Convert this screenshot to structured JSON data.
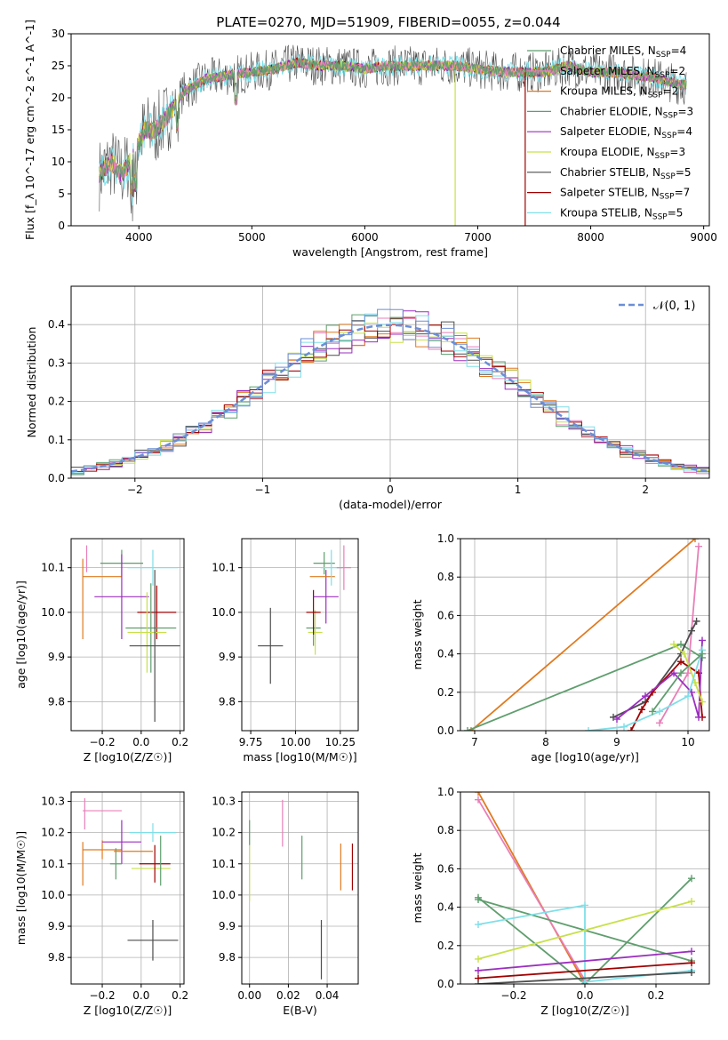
{
  "figure": {
    "title": "PLATE=0270, MJD=51909, FIBERID=0055, z=0.044"
  },
  "colors": {
    "palette": [
      "#5f9e6e",
      "#b556d4",
      "#d4d400",
      "#4d4d4d",
      "#a00000",
      "#7fdfe8",
      "#e07a1f",
      "#6b8ed6",
      "#e87fb8"
    ],
    "series_colors": {
      "Chabrier MILES": "#5f9e6e",
      "Salpeter MILES": "#e87fb8",
      "Kroupa MILES": "#e07a1f",
      "Chabrier ELODIE": "#5f9e6e",
      "Salpeter ELODIE": "#9b2fbf",
      "Kroupa ELODIE": "#c8e04a",
      "Chabrier STELIB": "#4d4d4d",
      "Salpeter STELIB": "#a00000",
      "Kroupa STELIB": "#7fdfe8"
    },
    "normal": "#6b8ed6",
    "grid": "#b0b0b0"
  },
  "chart_data": [
    {
      "id": "spectrum",
      "type": "line",
      "xlabel": "wavelength [Angstrom, rest frame]",
      "ylabel": "Flux [f_λ 10^-17 erg cm^-2 s^-1 A^-1]",
      "xlim": [
        3400,
        9050
      ],
      "ylim": [
        0,
        30
      ],
      "xticks": [
        4000,
        5000,
        6000,
        7000,
        8000,
        9000
      ],
      "yticks": [
        0,
        5,
        10,
        15,
        20,
        25,
        30
      ],
      "grid": false,
      "legend_position": "top-right",
      "legend": [
        {
          "name": "Chabrier MILES",
          "n": "4"
        },
        {
          "name": "Salpeter MILES",
          "n": "2"
        },
        {
          "name": "Kroupa MILES",
          "n": "2"
        },
        {
          "name": "Chabrier ELODIE",
          "n": "3"
        },
        {
          "name": "Salpeter ELODIE",
          "n": "4"
        },
        {
          "name": "Kroupa ELODIE",
          "n": "3"
        },
        {
          "name": "Chabrier STELIB",
          "n": "5"
        },
        {
          "name": "Salpeter STELIB",
          "n": "7"
        },
        {
          "name": "Kroupa STELIB",
          "n": "5"
        }
      ],
      "continuum": [
        [
          3650,
          8
        ],
        [
          3750,
          10
        ],
        [
          3850,
          8
        ],
        [
          3950,
          11
        ],
        [
          4050,
          15
        ],
        [
          4150,
          15
        ],
        [
          4250,
          17
        ],
        [
          4400,
          21
        ],
        [
          4600,
          23
        ],
        [
          4800,
          23.5
        ],
        [
          5000,
          24
        ],
        [
          5200,
          24.5
        ],
        [
          5400,
          25.5
        ],
        [
          5600,
          25
        ],
        [
          5800,
          25
        ],
        [
          6000,
          24.5
        ],
        [
          6200,
          25
        ],
        [
          6400,
          25
        ],
        [
          6600,
          25
        ],
        [
          6800,
          25
        ],
        [
          7000,
          24.5
        ],
        [
          7200,
          24
        ],
        [
          7400,
          24
        ],
        [
          7600,
          24
        ],
        [
          7800,
          25
        ],
        [
          8000,
          24
        ],
        [
          8200,
          24
        ],
        [
          8400,
          23.5
        ],
        [
          8600,
          23
        ],
        [
          8800,
          22
        ]
      ],
      "dropouts": [
        {
          "x": 6800,
          "series": "Kroupa ELODIE"
        },
        {
          "x": 7420,
          "series": "Salpeter STELIB"
        }
      ]
    },
    {
      "id": "residuals",
      "type": "histogram",
      "xlabel": "(data-model)/error",
      "ylabel": "Normed distribution",
      "xlim": [
        -2.5,
        2.5
      ],
      "ylim": [
        0,
        0.5
      ],
      "xticks": [
        -2,
        -1,
        0,
        1,
        2
      ],
      "yticks": [
        0.0,
        0.1,
        0.2,
        0.3,
        0.4
      ],
      "grid": true,
      "legend_position": "top-right",
      "legend": "𝒩(0, 1)",
      "bin_width": 0.1
    },
    {
      "id": "age_vs_Z",
      "type": "errorbar",
      "xlabel": "Z [log10(Z/Z☉)]",
      "ylabel": "age [log10(age/yr)]",
      "xlim": [
        -0.36,
        0.22
      ],
      "ylim": [
        9.735,
        10.165
      ],
      "xticks": [
        -0.2,
        0.0,
        0.2
      ],
      "yticks": [
        9.8,
        9.9,
        10.0,
        10.1
      ],
      "grid": true,
      "points": [
        {
          "x": -0.3,
          "xerr": 0.0,
          "y": 10.03,
          "yerr": 0.09,
          "series": "Kroupa MILES"
        },
        {
          "x": -0.2,
          "xerr": 0.1,
          "y": 10.08,
          "yerr": 0.0,
          "series": "Kroupa MILES"
        },
        {
          "x": -0.28,
          "xerr": 0.0,
          "y": 10.12,
          "yerr": 0.03,
          "series": "Salpeter MILES"
        },
        {
          "x": -0.1,
          "xerr": 0.11,
          "y": 10.11,
          "yerr": 0.03,
          "series": "Chabrier ELODIE"
        },
        {
          "x": -0.1,
          "xerr": 0.14,
          "y": 10.035,
          "yerr": 0.095,
          "series": "Salpeter ELODIE"
        },
        {
          "x": 0.06,
          "xerr": 0.13,
          "y": 10.1,
          "yerr": 0.04,
          "series": "Kroupa STELIB"
        },
        {
          "x": 0.08,
          "xerr": 0.1,
          "y": 10.0,
          "yerr": 0.06,
          "series": "Salpeter STELIB"
        },
        {
          "x": 0.05,
          "xerr": 0.13,
          "y": 9.965,
          "yerr": 0.1,
          "series": "Chabrier MILES"
        },
        {
          "x": 0.03,
          "xerr": 0.1,
          "y": 9.955,
          "yerr": 0.09,
          "series": "Kroupa ELODIE"
        },
        {
          "x": 0.07,
          "xerr": 0.13,
          "y": 9.925,
          "yerr": 0.17,
          "series": "Chabrier STELIB"
        }
      ]
    },
    {
      "id": "age_vs_mass",
      "type": "errorbar",
      "xlabel": "mass [log10(M/M☉)]",
      "ylabel": "",
      "xlim": [
        9.7,
        10.35
      ],
      "ylim": [
        9.735,
        10.165
      ],
      "xticks": [
        9.75,
        10.0,
        10.25
      ],
      "yticks": [
        9.8,
        9.9,
        10.0,
        10.1
      ],
      "grid": true,
      "points": [
        {
          "x": 9.86,
          "xerr": 0.07,
          "y": 9.925,
          "yerr": 0.085,
          "series": "Chabrier STELIB"
        },
        {
          "x": 10.1,
          "xerr": 0.04,
          "y": 9.965,
          "yerr": 0.04,
          "series": "Chabrier MILES"
        },
        {
          "x": 10.11,
          "xerr": 0.04,
          "y": 9.955,
          "yerr": 0.05,
          "series": "Kroupa ELODIE"
        },
        {
          "x": 10.1,
          "xerr": 0.04,
          "y": 10.0,
          "yerr": 0.05,
          "series": "Salpeter STELIB"
        },
        {
          "x": 10.17,
          "xerr": 0.07,
          "y": 10.035,
          "yerr": 0.06,
          "series": "Salpeter ELODIE"
        },
        {
          "x": 10.16,
          "xerr": 0.06,
          "y": 10.11,
          "yerr": 0.025,
          "series": "Chabrier ELODIE"
        },
        {
          "x": 10.15,
          "xerr": 0.07,
          "y": 10.08,
          "yerr": 0.0,
          "series": "Kroupa MILES"
        },
        {
          "x": 10.2,
          "xerr": 0.06,
          "y": 10.1,
          "yerr": 0.04,
          "series": "Kroupa STELIB"
        },
        {
          "x": 10.27,
          "xerr": 0.04,
          "y": 10.1,
          "yerr": 0.05,
          "series": "Salpeter MILES"
        }
      ]
    },
    {
      "id": "mass_weight_vs_age",
      "type": "line",
      "xlabel": "age [log10(age/yr)]",
      "ylabel": "mass weight",
      "xlim": [
        6.8,
        10.3
      ],
      "ylim": [
        0,
        1.0
      ],
      "xticks": [
        7,
        8,
        9,
        10
      ],
      "yticks": [
        0.0,
        0.2,
        0.4,
        0.6,
        0.8,
        1.0
      ],
      "grid": true,
      "series": [
        {
          "name": "Kroupa MILES",
          "x": [
            6.95,
            10.1
          ],
          "y": [
            0.0,
            1.0
          ]
        },
        {
          "name": "Chabrier MILES",
          "x": [
            6.9,
            9.9,
            10.2
          ],
          "y": [
            0.0,
            0.45,
            0.38
          ]
        },
        {
          "name": "Salpeter MILES",
          "x": [
            9.6,
            10.0,
            10.15
          ],
          "y": [
            0.04,
            0.3,
            0.96
          ]
        },
        {
          "name": "Chabrier STELIB",
          "x": [
            8.95,
            9.4,
            9.9,
            10.05,
            10.12
          ],
          "y": [
            0.07,
            0.15,
            0.4,
            0.52,
            0.57
          ]
        },
        {
          "name": "Salpeter STELIB",
          "x": [
            9.2,
            9.35,
            9.5,
            9.9,
            10.15,
            10.2
          ],
          "y": [
            0.0,
            0.11,
            0.2,
            0.36,
            0.3,
            0.07
          ]
        },
        {
          "name": "Salpeter ELODIE",
          "x": [
            9.0,
            9.4,
            9.8,
            10.05,
            10.15,
            10.2
          ],
          "y": [
            0.06,
            0.18,
            0.3,
            0.2,
            0.07,
            0.47
          ]
        },
        {
          "name": "Kroupa ELODIE",
          "x": [
            9.8,
            9.95,
            10.1,
            10.2
          ],
          "y": [
            0.45,
            0.4,
            0.25,
            0.15
          ]
        },
        {
          "name": "Kroupa STELIB",
          "x": [
            8.6,
            9.1,
            9.6,
            10.0,
            10.2
          ],
          "y": [
            0.0,
            0.02,
            0.1,
            0.18,
            0.42
          ]
        },
        {
          "name": "Chabrier ELODIE",
          "x": [
            9.5,
            9.9,
            10.2
          ],
          "y": [
            0.1,
            0.3,
            0.4
          ]
        }
      ]
    },
    {
      "id": "mass_vs_Z",
      "type": "errorbar",
      "xlabel": "Z [log10(Z/Z☉)]",
      "ylabel": "mass [log10(M/M☉)]",
      "xlim": [
        -0.36,
        0.22
      ],
      "ylim": [
        9.715,
        10.33
      ],
      "xticks": [
        -0.2,
        0.0,
        0.2
      ],
      "yticks": [
        9.8,
        9.9,
        10.0,
        10.1,
        10.2,
        10.3
      ],
      "grid": true,
      "points": [
        {
          "x": -0.2,
          "xerr": 0.1,
          "y": 10.27,
          "yerr": 0.0,
          "series": "Salpeter MILES"
        },
        {
          "x": -0.29,
          "xerr": 0.0,
          "y": 10.26,
          "yerr": 0.05,
          "series": "Salpeter MILES"
        },
        {
          "x": -0.2,
          "xerr": 0.1,
          "y": 10.145,
          "yerr": 0.03,
          "series": "Kroupa MILES"
        },
        {
          "x": -0.3,
          "xerr": 0.0,
          "y": 10.1,
          "yerr": 0.07,
          "series": "Kroupa MILES"
        },
        {
          "x": -0.1,
          "xerr": 0.1,
          "y": 10.17,
          "yerr": 0.07,
          "series": "Salpeter ELODIE"
        },
        {
          "x": -0.13,
          "xerr": 0.03,
          "y": 10.1,
          "yerr": 0.05,
          "series": "Chabrier ELODIE"
        },
        {
          "x": 0.06,
          "xerr": 0.12,
          "y": 10.2,
          "yerr": 0.03,
          "series": "Kroupa STELIB"
        },
        {
          "x": -0.04,
          "xerr": 0.1,
          "y": 10.14,
          "yerr": 0.0,
          "series": "Kroupa MILES"
        },
        {
          "x": 0.05,
          "xerr": 0.1,
          "y": 10.085,
          "yerr": 0.0,
          "series": "Kroupa ELODIE"
        },
        {
          "x": 0.07,
          "xerr": 0.08,
          "y": 10.1,
          "yerr": 0.06,
          "series": "Salpeter STELIB"
        },
        {
          "x": 0.1,
          "xerr": 0.0,
          "y": 10.11,
          "yerr": 0.08,
          "series": "Chabrier MILES"
        },
        {
          "x": 0.06,
          "xerr": 0.13,
          "y": 9.855,
          "yerr": 0.065,
          "series": "Chabrier STELIB"
        }
      ]
    },
    {
      "id": "mass_vs_ebv",
      "type": "errorbar",
      "xlabel": "E(B-V)",
      "ylabel": "",
      "xlim": [
        -0.004,
        0.056
      ],
      "ylim": [
        9.715,
        10.33
      ],
      "xticks": [
        0.0,
        0.02,
        0.04
      ],
      "yticks": [
        9.8,
        9.9,
        10.0,
        10.1,
        10.2,
        10.3
      ],
      "grid": true,
      "points": [
        {
          "x": 0.0,
          "xerr": 0.0,
          "y": 10.07,
          "yerr": 0.09,
          "series": "Kroupa ELODIE"
        },
        {
          "x": 0.0,
          "xerr": 0.0,
          "y": 10.2,
          "yerr": 0.04,
          "series": "Chabrier ELODIE"
        },
        {
          "x": 0.017,
          "xerr": 0.0,
          "y": 10.23,
          "yerr": 0.075,
          "series": "Salpeter MILES"
        },
        {
          "x": 0.027,
          "xerr": 0.0,
          "y": 10.12,
          "yerr": 0.07,
          "series": "Chabrier ELODIE"
        },
        {
          "x": 0.037,
          "xerr": 0.0,
          "y": 9.825,
          "yerr": 0.095,
          "series": "Chabrier STELIB"
        },
        {
          "x": 0.047,
          "xerr": 0.0,
          "y": 10.09,
          "yerr": 0.075,
          "series": "Kroupa MILES"
        },
        {
          "x": 0.053,
          "xerr": 0.0,
          "y": 10.09,
          "yerr": 0.075,
          "series": "Salpeter STELIB"
        }
      ]
    },
    {
      "id": "mass_weight_vs_Z",
      "type": "line",
      "xlabel": "Z [log10(Z/Z☉)]",
      "ylabel": "mass weight",
      "xlim": [
        -0.35,
        0.35
      ],
      "ylim": [
        0,
        1.0
      ],
      "xticks": [
        -0.2,
        0.0,
        0.2
      ],
      "yticks": [
        0.0,
        0.2,
        0.4,
        0.6,
        0.8,
        1.0
      ],
      "grid": true,
      "series": [
        {
          "name": "Kroupa MILES",
          "x": [
            -0.3,
            0.0
          ],
          "y": [
            1.0,
            0.0
          ]
        },
        {
          "name": "Salpeter MILES",
          "x": [
            -0.3,
            0.0
          ],
          "y": [
            0.96,
            0.02
          ]
        },
        {
          "name": "Chabrier MILES",
          "x": [
            -0.3,
            0.0,
            0.3
          ],
          "y": [
            0.45,
            0.0,
            0.55
          ]
        },
        {
          "name": "Chabrier ELODIE",
          "x": [
            -0.3,
            0.0,
            0.3
          ],
          "y": [
            0.44,
            0.28,
            0.12
          ]
        },
        {
          "name": "Kroupa STELIB",
          "x": [
            -0.3,
            0.0,
            0.0,
            0.3
          ],
          "y": [
            0.31,
            0.41,
            0.01,
            0.07
          ]
        },
        {
          "name": "Kroupa ELODIE",
          "x": [
            -0.3,
            0.3
          ],
          "y": [
            0.13,
            0.43
          ]
        },
        {
          "name": "Salpeter ELODIE",
          "x": [
            -0.3,
            0.3
          ],
          "y": [
            0.07,
            0.17
          ]
        },
        {
          "name": "Salpeter STELIB",
          "x": [
            -0.3,
            0.3
          ],
          "y": [
            0.03,
            0.11
          ]
        },
        {
          "name": "Chabrier STELIB",
          "x": [
            -0.3,
            0.3
          ],
          "y": [
            0.0,
            0.06
          ]
        }
      ]
    }
  ]
}
